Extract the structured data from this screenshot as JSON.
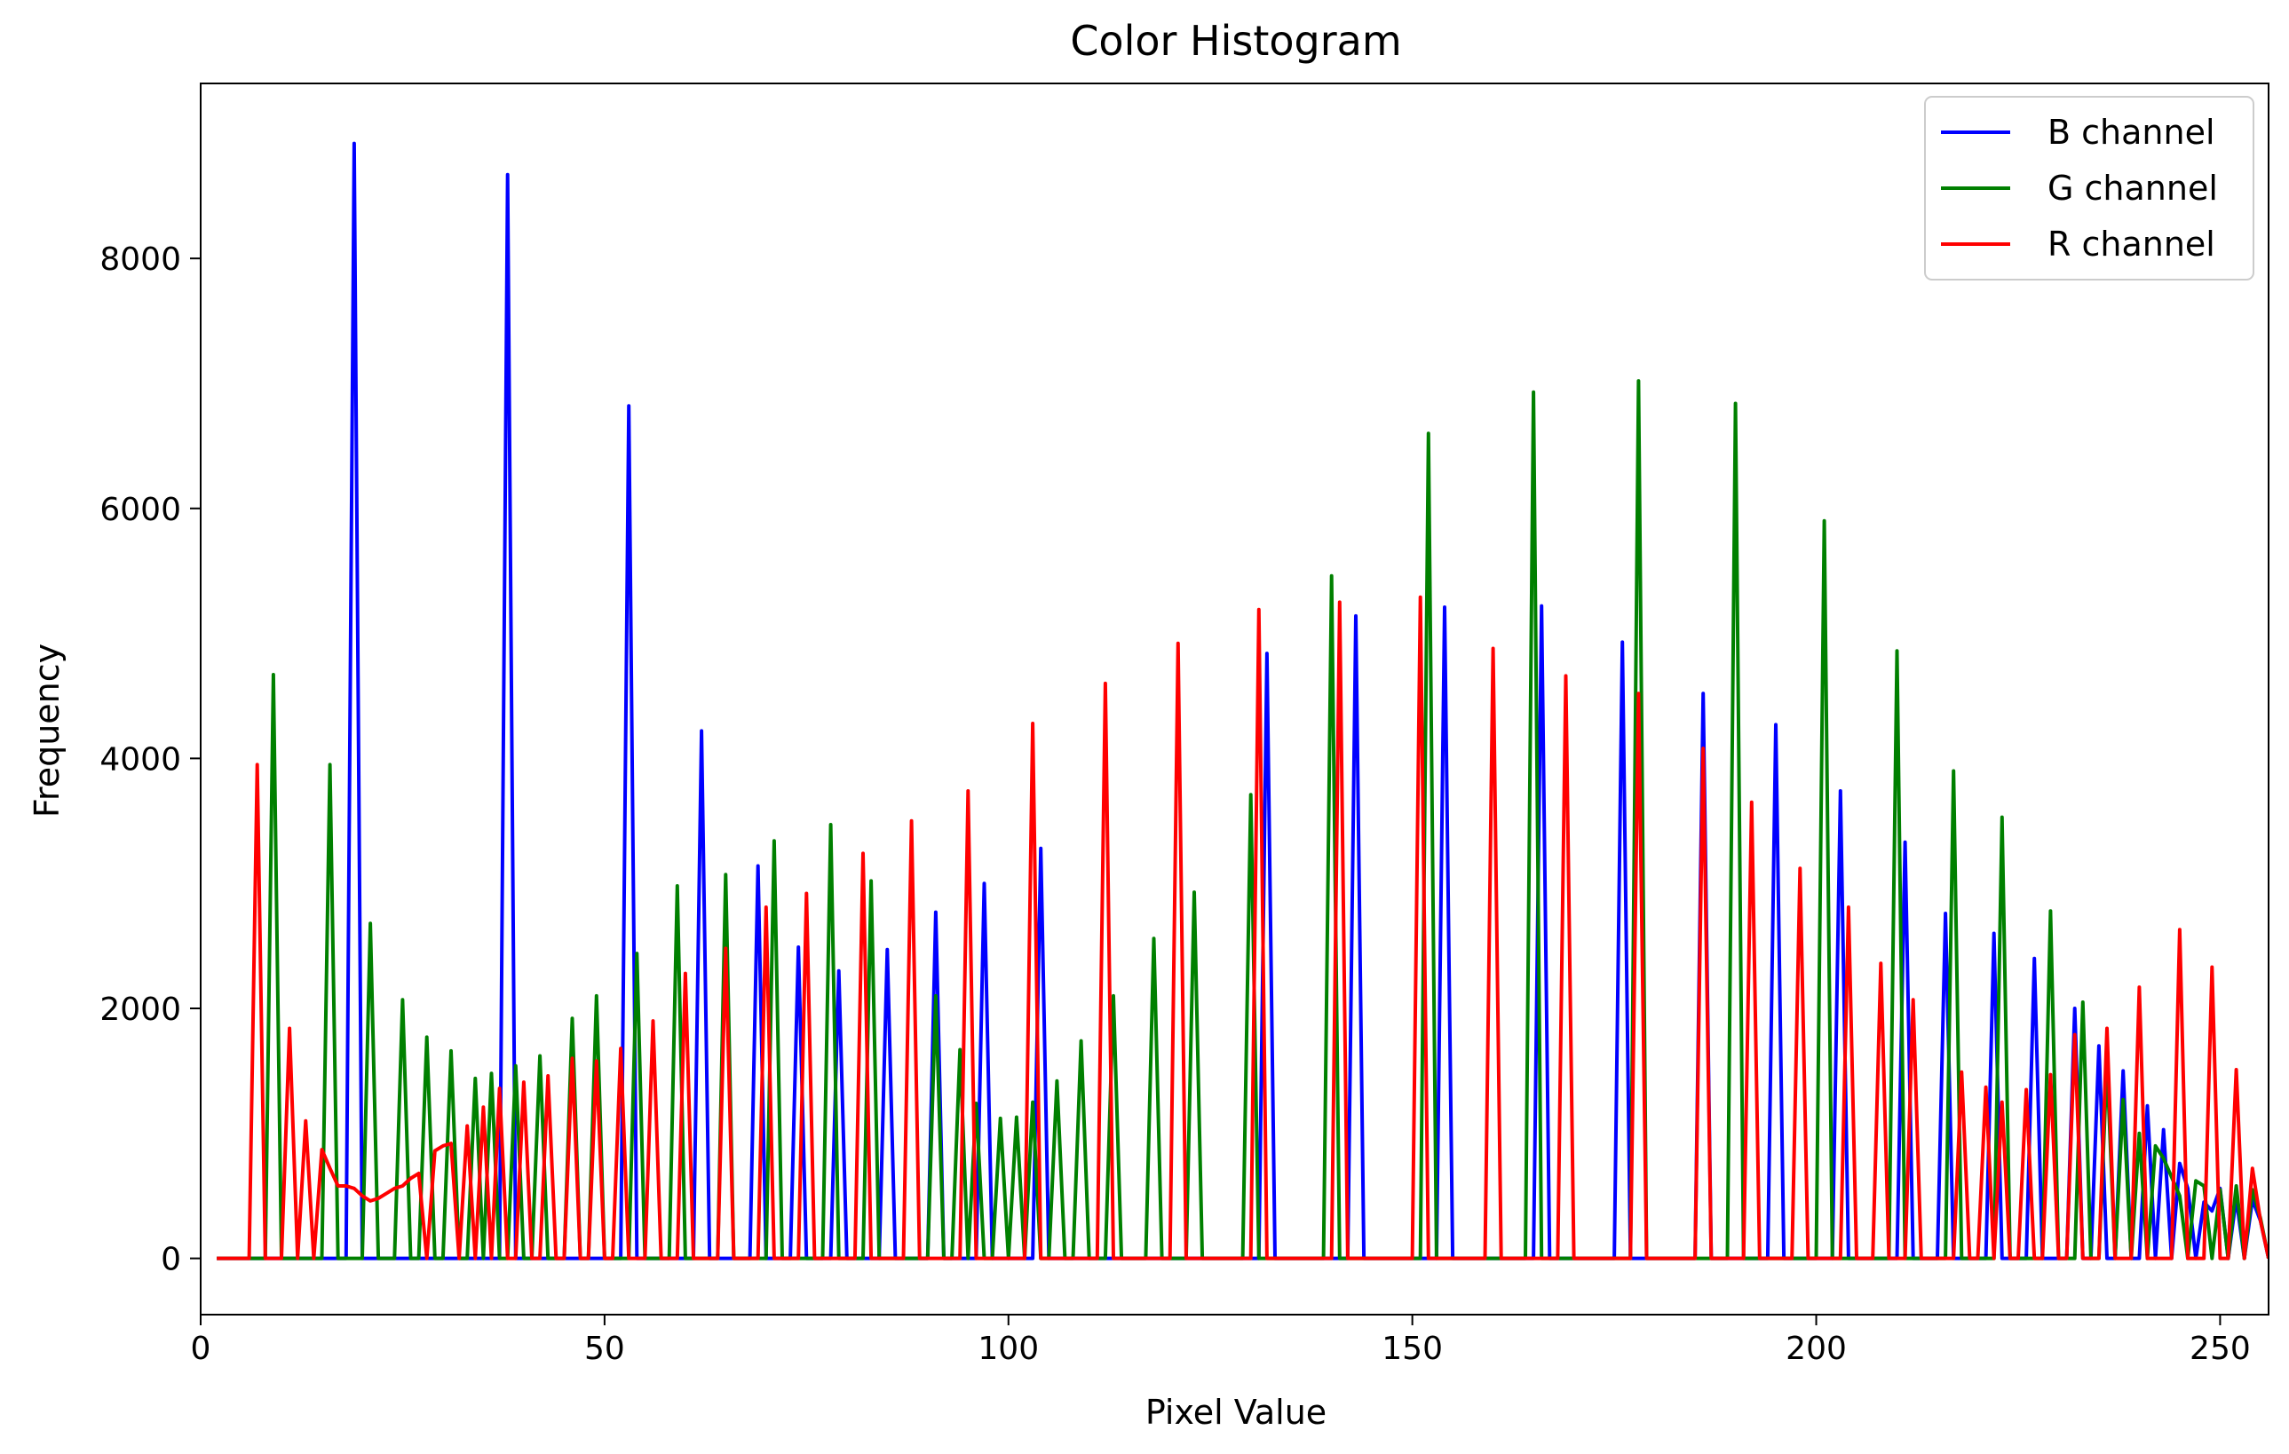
{
  "chart_data": {
    "type": "line",
    "title": "Color Histogram",
    "xlabel": "Pixel Value",
    "ylabel": "Frequency",
    "xlim": [
      0,
      256
    ],
    "ylim": [
      -450,
      9400
    ],
    "xticks": [
      0,
      50,
      100,
      150,
      200,
      250
    ],
    "yticks": [
      0,
      2000,
      4000,
      6000,
      8000
    ],
    "grid": false,
    "legend_position": "top-right",
    "series": [
      {
        "name": "B channel",
        "color": "#0000ff",
        "peaks": [
          [
            19,
            8920
          ],
          [
            38,
            8670
          ],
          [
            53,
            6820
          ],
          [
            62,
            4220
          ],
          [
            69,
            3140
          ],
          [
            74,
            2490
          ],
          [
            79,
            2300
          ],
          [
            85,
            2470
          ],
          [
            91,
            2770
          ],
          [
            97,
            3000
          ],
          [
            104,
            3280
          ],
          [
            132,
            4840
          ],
          [
            143,
            5140
          ],
          [
            154,
            5210
          ],
          [
            166,
            5220
          ],
          [
            176,
            4930
          ],
          [
            186,
            4520
          ],
          [
            195,
            4270
          ],
          [
            203,
            3740
          ],
          [
            211,
            3330
          ],
          [
            216,
            2760
          ],
          [
            222,
            2600
          ],
          [
            227,
            2400
          ],
          [
            232,
            2000
          ],
          [
            235,
            1700
          ],
          [
            238,
            1500
          ],
          [
            241,
            1220
          ],
          [
            243,
            1030
          ],
          [
            245,
            760
          ],
          [
            246,
            560
          ],
          [
            248,
            450
          ],
          [
            249,
            380
          ],
          [
            250,
            560
          ],
          [
            252,
            480
          ],
          [
            254,
            470
          ]
        ],
        "tail": [
          [
            254,
            470
          ],
          [
            255,
            300
          ],
          [
            256,
            0
          ]
        ]
      },
      {
        "name": "G channel",
        "color": "#008000",
        "peaks": [
          [
            9,
            4670
          ],
          [
            16,
            3950
          ],
          [
            21,
            2680
          ],
          [
            25,
            2070
          ],
          [
            28,
            1770
          ],
          [
            31,
            1660
          ],
          [
            34,
            1440
          ],
          [
            36,
            1480
          ],
          [
            39,
            1540
          ],
          [
            42,
            1620
          ],
          [
            46,
            1920
          ],
          [
            49,
            2100
          ],
          [
            54,
            2440
          ],
          [
            59,
            2980
          ],
          [
            65,
            3070
          ],
          [
            71,
            3340
          ],
          [
            78,
            3470
          ],
          [
            83,
            3020
          ],
          [
            91,
            2100
          ],
          [
            94,
            1670
          ],
          [
            96,
            1240
          ],
          [
            99,
            1120
          ],
          [
            101,
            1130
          ],
          [
            103,
            1250
          ],
          [
            106,
            1420
          ],
          [
            109,
            1740
          ],
          [
            113,
            2100
          ],
          [
            118,
            2560
          ],
          [
            123,
            2930
          ],
          [
            130,
            3710
          ],
          [
            140,
            5460
          ],
          [
            152,
            6600
          ],
          [
            165,
            6930
          ],
          [
            178,
            7020
          ],
          [
            190,
            6840
          ],
          [
            201,
            5900
          ],
          [
            210,
            4860
          ],
          [
            217,
            3900
          ],
          [
            223,
            3530
          ],
          [
            229,
            2780
          ],
          [
            233,
            2050
          ],
          [
            236,
            1560
          ],
          [
            238,
            1270
          ],
          [
            240,
            1000
          ],
          [
            242,
            900
          ],
          [
            243,
            800
          ],
          [
            244,
            650
          ],
          [
            245,
            500
          ],
          [
            247,
            620
          ],
          [
            248,
            580
          ],
          [
            250,
            550
          ],
          [
            252,
            580
          ],
          [
            254,
            550
          ]
        ],
        "tail": [
          [
            254,
            550
          ],
          [
            255,
            320
          ],
          [
            256,
            0
          ]
        ]
      },
      {
        "name": "R channel",
        "color": "#ff0000",
        "peaks": [
          [
            7,
            3950
          ],
          [
            11,
            1840
          ],
          [
            13,
            1100
          ],
          [
            15,
            870
          ],
          [
            33,
            1060
          ],
          [
            35,
            1210
          ],
          [
            37,
            1360
          ],
          [
            40,
            1410
          ],
          [
            43,
            1460
          ],
          [
            46,
            1600
          ],
          [
            49,
            1580
          ],
          [
            52,
            1680
          ],
          [
            56,
            1900
          ],
          [
            60,
            2280
          ],
          [
            65,
            2480
          ],
          [
            70,
            2810
          ],
          [
            75,
            2920
          ],
          [
            82,
            3240
          ],
          [
            88,
            3500
          ],
          [
            95,
            3740
          ],
          [
            103,
            4280
          ],
          [
            112,
            4600
          ],
          [
            121,
            4920
          ],
          [
            131,
            5190
          ],
          [
            141,
            5250
          ],
          [
            151,
            5290
          ],
          [
            160,
            4880
          ],
          [
            169,
            4660
          ],
          [
            178,
            4520
          ],
          [
            186,
            4080
          ],
          [
            192,
            3650
          ],
          [
            198,
            3120
          ],
          [
            204,
            2810
          ],
          [
            208,
            2360
          ],
          [
            212,
            2070
          ],
          [
            218,
            1490
          ],
          [
            221,
            1370
          ],
          [
            223,
            1250
          ],
          [
            226,
            1350
          ],
          [
            229,
            1470
          ],
          [
            232,
            1790
          ],
          [
            236,
            1840
          ],
          [
            240,
            2170
          ],
          [
            245,
            2630
          ],
          [
            249,
            2330
          ],
          [
            252,
            1510
          ],
          [
            254,
            720
          ]
        ],
        "baseline": [
          [
            7,
            0
          ],
          [
            7,
            3950
          ],
          [
            8,
            0
          ],
          [
            10,
            0
          ],
          [
            11,
            1840
          ],
          [
            12,
            0
          ],
          [
            13,
            1100
          ],
          [
            14,
            0
          ],
          [
            15,
            870
          ],
          [
            16,
            720
          ],
          [
            17,
            580
          ],
          [
            18,
            580
          ],
          [
            19,
            560
          ],
          [
            20,
            500
          ],
          [
            21,
            460
          ],
          [
            22,
            480
          ],
          [
            23,
            520
          ],
          [
            24,
            560
          ],
          [
            25,
            580
          ],
          [
            26,
            640
          ],
          [
            27,
            680
          ],
          [
            28,
            0
          ],
          [
            29,
            860
          ],
          [
            30,
            900
          ],
          [
            31,
            920
          ],
          [
            32,
            0
          ],
          [
            33,
            1060
          ],
          [
            34,
            0
          ],
          [
            35,
            1210
          ],
          [
            36,
            0
          ],
          [
            37,
            1360
          ],
          [
            38,
            0
          ]
        ],
        "tail": [
          [
            254,
            720
          ],
          [
            255,
            300
          ],
          [
            256,
            0
          ]
        ]
      }
    ]
  }
}
